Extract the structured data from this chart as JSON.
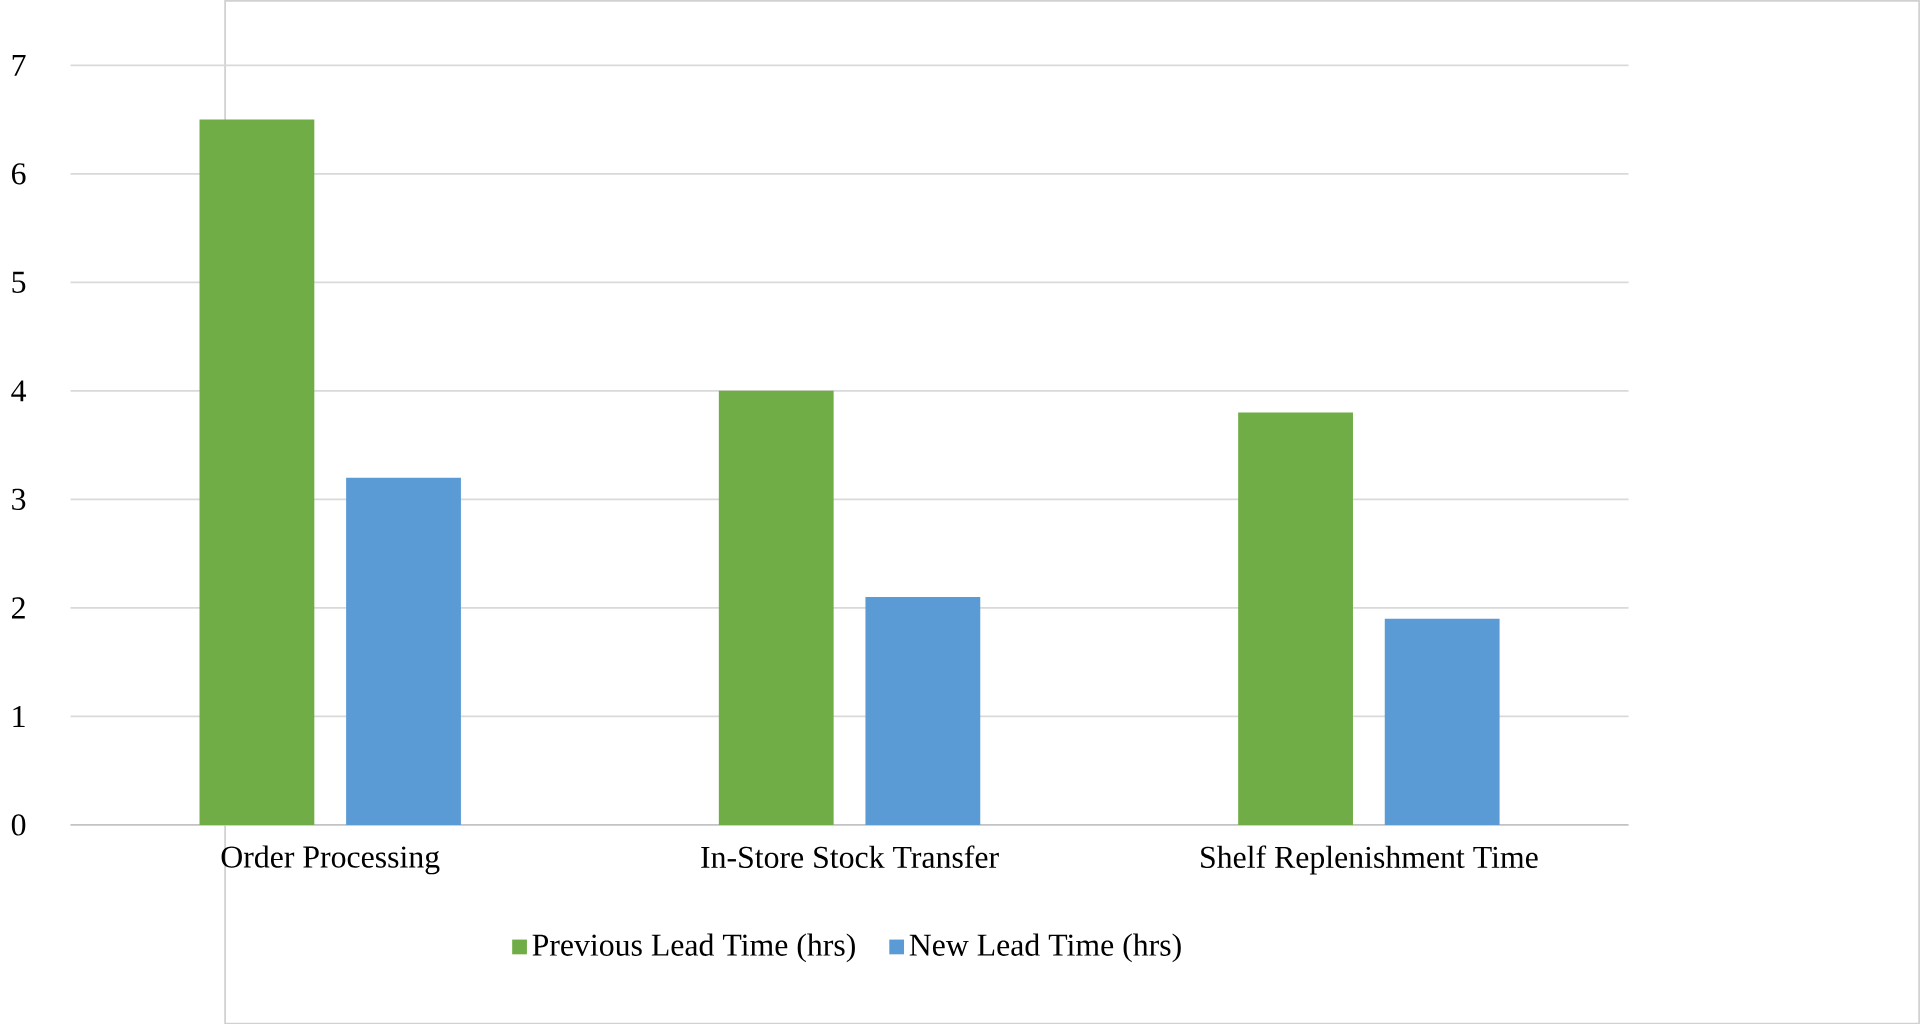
{
  "chart_data": {
    "type": "bar",
    "categories": [
      "Order Processing",
      "In-Store Stock Transfer",
      "Shelf Replenishment Time"
    ],
    "series": [
      {
        "name": "Previous Lead Time (hrs)",
        "color": "#70ad47",
        "values": [
          6.5,
          4.0,
          3.8
        ]
      },
      {
        "name": "New Lead Time (hrs)",
        "color": "#5b9bd5",
        "values": [
          3.2,
          2.1,
          1.9
        ]
      }
    ],
    "ylim": [
      0,
      7
    ],
    "yticks": [
      0,
      1,
      2,
      3,
      4,
      5,
      6,
      7
    ],
    "grid": "y",
    "legend": "bottom"
  }
}
